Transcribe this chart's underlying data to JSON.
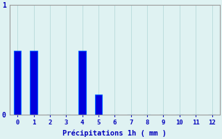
{
  "categories": [
    0,
    1,
    2,
    3,
    4,
    5,
    6,
    7,
    8,
    9,
    10,
    11,
    12
  ],
  "values": [
    0.58,
    0.58,
    0,
    0,
    0.58,
    0.18,
    0,
    0,
    0,
    0,
    0,
    0,
    0
  ],
  "bar_color": "#0000dd",
  "bar_edge_color": "#0066ff",
  "background_color": "#dff2f2",
  "axis_color": "#999999",
  "text_color": "#0000bb",
  "xlabel": "Précipitations 1h ( mm )",
  "ylim": [
    0,
    1.0
  ],
  "yticks": [
    0,
    1
  ],
  "xlim": [
    -0.5,
    12.5
  ],
  "grid_color": "#bbdddd",
  "bar_width": 0.45
}
